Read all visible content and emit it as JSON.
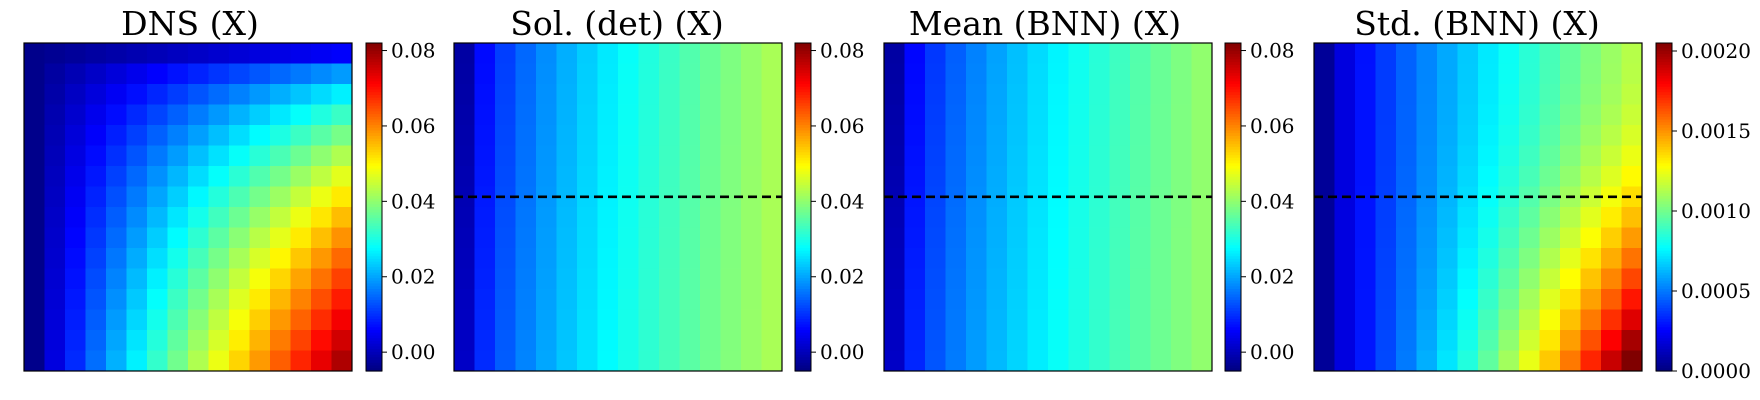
{
  "chart_data": [
    {
      "type": "heatmap",
      "title": "DNS (X)",
      "grid": [
        16,
        16
      ],
      "field": "dns",
      "colorbar": {
        "min": -0.005,
        "max": 0.082,
        "ticks": [
          0.0,
          0.02,
          0.04,
          0.06,
          0.08
        ],
        "tick_labels": [
          "0.00",
          "0.02",
          "0.04",
          "0.06",
          "0.08"
        ]
      },
      "dashed_line": false
    },
    {
      "type": "heatmap",
      "title": "Sol. (det) (X)",
      "grid": [
        16,
        16
      ],
      "field": "det",
      "colorbar": {
        "min": -0.005,
        "max": 0.082,
        "ticks": [
          0.0,
          0.02,
          0.04,
          0.06,
          0.08
        ],
        "tick_labels": [
          "0.00",
          "0.02",
          "0.04",
          "0.06",
          "0.08"
        ]
      },
      "dashed_line": true
    },
    {
      "type": "heatmap",
      "title": "Mean (BNN) (X)",
      "grid": [
        16,
        16
      ],
      "field": "mean",
      "colorbar": {
        "min": -0.005,
        "max": 0.082,
        "ticks": [
          0.0,
          0.02,
          0.04,
          0.06,
          0.08
        ],
        "tick_labels": [
          "0.00",
          "0.02",
          "0.04",
          "0.06",
          "0.08"
        ]
      },
      "dashed_line": true
    },
    {
      "type": "heatmap",
      "title": "Std. (BNN) (X)",
      "grid": [
        16,
        16
      ],
      "field": "std",
      "colorbar": {
        "min": 0.0,
        "max": 0.00205,
        "ticks": [
          0.0,
          0.0005,
          0.001,
          0.0015,
          0.002
        ],
        "tick_labels": [
          "0.0000",
          "0.0005",
          "0.0010",
          "0.0015",
          "0.0020"
        ]
      },
      "dashed_line": true
    }
  ],
  "colors": {
    "cmap": "jet",
    "dashed_line": "#000000",
    "frame": "#000000"
  }
}
